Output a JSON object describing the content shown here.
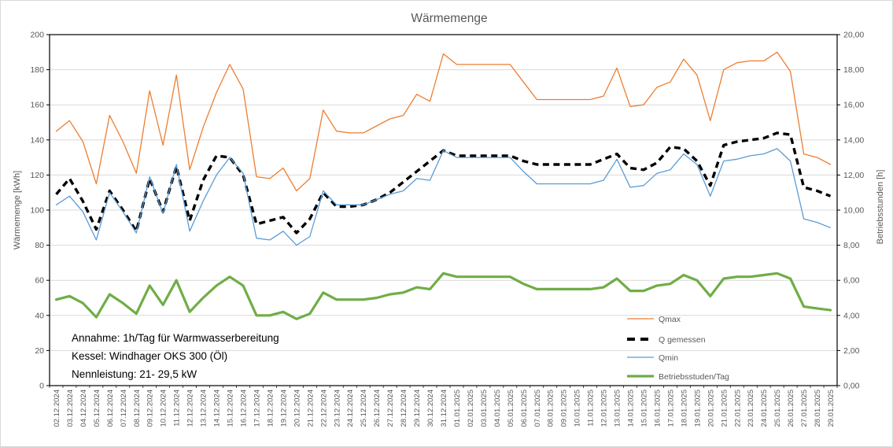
{
  "chart_data": {
    "type": "line",
    "title": "Wärmemenge",
    "grid": true,
    "legend_position": "inside-right-bottom",
    "categories": [
      "02.12.2024",
      "03.12.2024",
      "04.12.2024",
      "05.12.2024",
      "06.12.2024",
      "07.12.2024",
      "08.12.2024",
      "09.12.2024",
      "10.12.2024",
      "11.12.2024",
      "12.12.2024",
      "13.12.2024",
      "14.12.2024",
      "15.12.2024",
      "16.12.2024",
      "17.12.2024",
      "18.12.2024",
      "19.12.2024",
      "20.12.2024",
      "21.12.2024",
      "22.12.2024",
      "23.12.2024",
      "24.12.2024",
      "25.12.2024",
      "26.12.2024",
      "27.12.2024",
      "28.12.2024",
      "29.12.2024",
      "30.12.2024",
      "31.12.2024",
      "01.01.2025",
      "02.01.2025",
      "03.01.2025",
      "04.01.2025",
      "05.01.2025",
      "06.01.2025",
      "07.01.2025",
      "08.01.2025",
      "09.01.2025",
      "10.01.2025",
      "11.01.2025",
      "12.01.2025",
      "13.01.2025",
      "14.01.2025",
      "15.01.2025",
      "16.01.2025",
      "17.01.2025",
      "18.01.2025",
      "19.01.2025",
      "20.01.2025",
      "21.01.2025",
      "22.01.2025",
      "23.01.2025",
      "24.01.2025",
      "25.01.2025",
      "26.01.2025",
      "27.01.2025",
      "28.01.2025",
      "29.01.2025"
    ],
    "series": [
      {
        "name": "Qmax",
        "axis": "left",
        "color": "#ED7D31",
        "width": 1.3,
        "dash": null,
        "values": [
          145,
          151,
          139,
          115,
          154,
          139,
          121,
          168,
          137,
          177,
          123,
          147,
          167,
          183,
          169,
          119,
          118,
          124,
          111,
          118,
          157,
          145,
          144,
          144,
          148,
          152,
          154,
          166,
          162,
          189,
          183,
          183,
          183,
          183,
          183,
          173,
          163,
          163,
          163,
          163,
          163,
          165,
          181,
          159,
          160,
          170,
          173,
          186,
          177,
          151,
          180,
          184,
          185,
          185,
          190,
          179,
          132,
          130,
          126
        ]
      },
      {
        "name": "Q gemessen",
        "axis": "left",
        "color": "#000000",
        "width": 3.4,
        "dash": "8 5.5",
        "values": [
          109,
          118,
          105,
          89,
          111,
          100,
          88,
          118,
          99,
          125,
          94,
          117,
          131,
          130,
          120,
          92,
          94,
          96,
          87,
          95,
          110,
          102,
          102,
          103,
          106,
          110,
          116,
          122,
          128,
          134,
          131,
          131,
          131,
          131,
          131,
          128,
          126,
          126,
          126,
          126,
          126,
          129,
          132,
          124,
          123,
          127,
          136,
          135,
          128,
          114,
          137,
          139,
          140,
          141,
          144,
          143,
          113,
          111,
          108
        ]
      },
      {
        "name": "Qmin",
        "axis": "left",
        "color": "#5B9BD5",
        "width": 1.3,
        "dash": null,
        "values": [
          103,
          108,
          99,
          83,
          110,
          99,
          87,
          119,
          98,
          126,
          88,
          105,
          120,
          130,
          121,
          84,
          83,
          88,
          80,
          85,
          111,
          103,
          103,
          103,
          106,
          109,
          111,
          118,
          117,
          134,
          130,
          130,
          130,
          130,
          130,
          122,
          115,
          115,
          115,
          115,
          115,
          117,
          129,
          113,
          114,
          121,
          123,
          132,
          126,
          108,
          128,
          129,
          131,
          132,
          135,
          128,
          95,
          93,
          90
        ]
      },
      {
        "name": "Betriebsstuden/Tag",
        "axis": "right",
        "color": "#70AD47",
        "width": 3.2,
        "dash": null,
        "values": [
          4.9,
          5.1,
          4.7,
          3.9,
          5.2,
          4.7,
          4.1,
          5.7,
          4.6,
          6.0,
          4.2,
          5.0,
          5.7,
          6.2,
          5.7,
          4.0,
          4.0,
          4.2,
          3.8,
          4.1,
          5.3,
          4.9,
          4.9,
          4.9,
          5.0,
          5.2,
          5.3,
          5.6,
          5.5,
          6.4,
          6.2,
          6.2,
          6.2,
          6.2,
          6.2,
          5.8,
          5.5,
          5.5,
          5.5,
          5.5,
          5.5,
          5.6,
          6.1,
          5.4,
          5.4,
          5.7,
          5.8,
          6.3,
          6.0,
          5.1,
          6.1,
          6.2,
          6.2,
          6.3,
          6.4,
          6.1,
          4.5,
          4.4,
          4.3
        ]
      }
    ],
    "left_axis": {
      "title": "Wärmemenge  [kWh]",
      "min": 0,
      "max": 200,
      "step": 20,
      "labels": [
        "0",
        "20",
        "40",
        "60",
        "80",
        "100",
        "120",
        "140",
        "160",
        "180",
        "200"
      ]
    },
    "right_axis": {
      "title": "Betriebsstunden [h]",
      "min": 0,
      "max": 20,
      "step": 2,
      "labels": [
        "0,00",
        "2,00",
        "4,00",
        "6,00",
        "8,00",
        "10,00",
        "12,00",
        "14,00",
        "16,00",
        "18,00",
        "20,00"
      ]
    }
  },
  "annotation": {
    "line1": "Annahme: 1h/Tag für Warmwasserbereitung",
    "line2": "Kessel: Windhager OKS 300 (Öl)",
    "line3": "Nennleistung: 21- 29,5 kW"
  },
  "colors": {
    "grid": "#D9D9D9",
    "frame": "#000000",
    "text": "#595959",
    "annotation": "#000000"
  }
}
